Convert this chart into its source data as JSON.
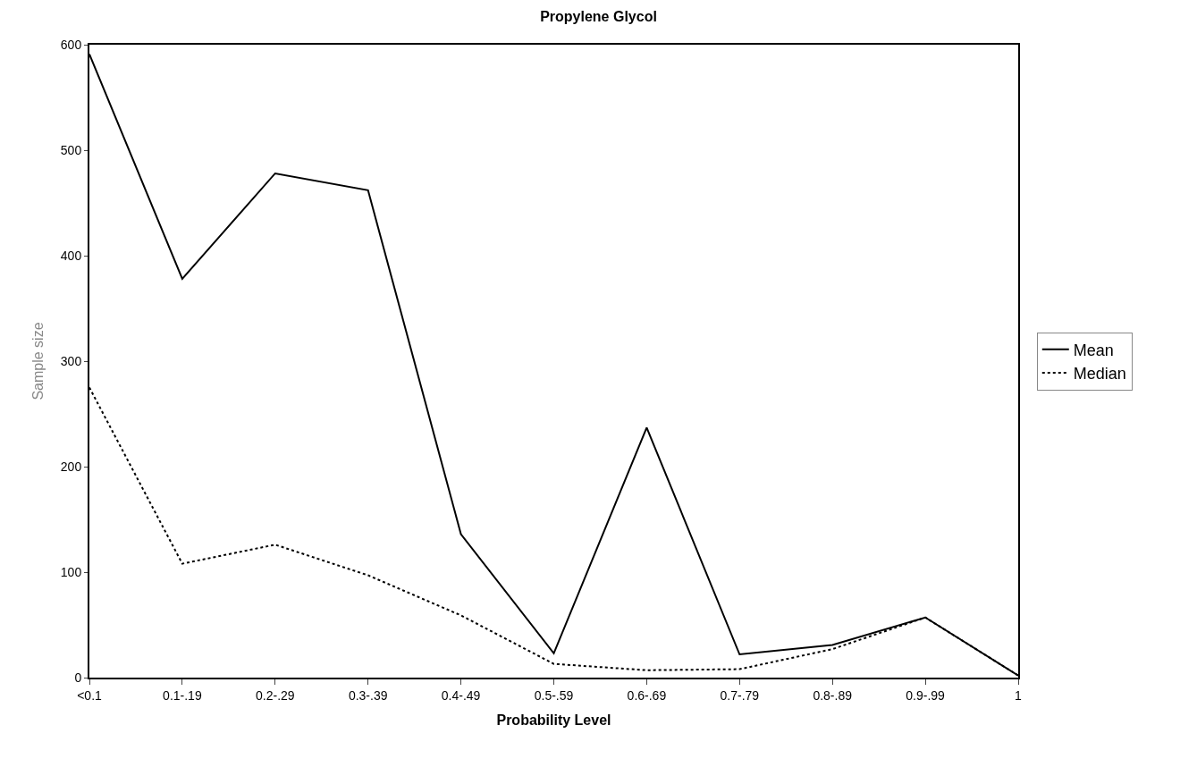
{
  "chart_data": {
    "type": "line",
    "title": "Propylene Glycol",
    "xlabel": "Probability Level",
    "ylabel": "Sample size",
    "categories": [
      "<0.1",
      "0.1-.19",
      "0.2-.29",
      "0.3-.39",
      "0.4-.49",
      "0.5-.59",
      "0.6-.69",
      "0.7-.79",
      "0.8-.89",
      "0.9-.99",
      "1"
    ],
    "series": [
      {
        "name": "Mean",
        "color": "#000000",
        "line_style": "solid",
        "values": [
          591,
          378,
          478,
          462,
          136,
          23,
          237,
          22,
          31,
          57,
          2
        ]
      },
      {
        "name": "Median",
        "color": "#000000",
        "line_style": "dotted",
        "values": [
          275,
          108,
          126,
          97,
          59,
          13,
          7,
          8,
          27,
          57,
          2
        ]
      }
    ],
    "ylim": [
      0,
      600
    ],
    "yticks": [
      0,
      100,
      200,
      300,
      400,
      500,
      600
    ],
    "legend": "right",
    "marker": "none"
  }
}
